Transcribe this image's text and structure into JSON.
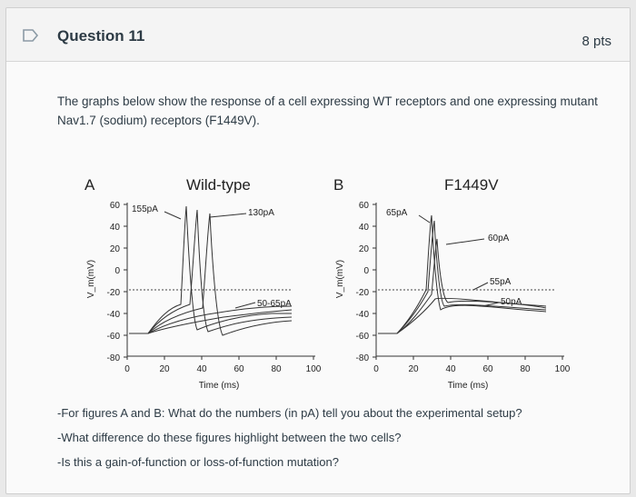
{
  "question": {
    "title": "Question 11",
    "points": "8 pts"
  },
  "intro_text": "The graphs below show the response of a cell expressing WT receptors and one expressing mutant Nav1.7 (sodium) receptors (F1449V).",
  "panels": [
    {
      "letter": "A",
      "title": "Wild-type",
      "ylabel": "V_m(mV)",
      "xlabel": "Time (ms)",
      "x_ticks": [
        "0",
        "20",
        "40",
        "60",
        "80",
        "100"
      ],
      "y_ticks": [
        "60",
        "40",
        "20",
        "0",
        "-20",
        "-40",
        "-60",
        "-80"
      ],
      "annotations": [
        "155pA",
        "130pA",
        "50-65pA"
      ]
    },
    {
      "letter": "B",
      "title": "F1449V",
      "ylabel": "V_m(mV)",
      "xlabel": "Time (ms)",
      "x_ticks": [
        "0",
        "20",
        "40",
        "60",
        "80",
        "100"
      ],
      "y_ticks": [
        "60",
        "40",
        "20",
        "0",
        "-20",
        "-40",
        "-60",
        "-80"
      ],
      "annotations": [
        "65pA",
        "60pA",
        "55pA",
        "50pA"
      ]
    }
  ],
  "questions": [
    "-For figures A and B: What do the numbers (in pA) tell you about the experimental setup?",
    "-What difference do these figures highlight between the two cells?",
    "-Is this a gain-of-function or loss-of-function mutation?"
  ]
}
